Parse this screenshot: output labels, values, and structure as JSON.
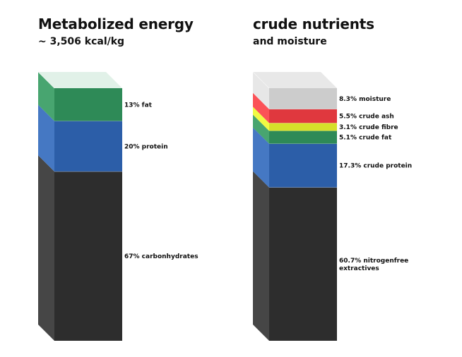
{
  "chart_data": [
    {
      "type": "stacked-bar-3d",
      "title": "Metabolized energy",
      "subtitle": "~ 3,506 kcal/kg",
      "segments": [
        {
          "label": "67% carbonhydrates",
          "value": 67,
          "color": "#2d2d2d"
        },
        {
          "label": "20% protein",
          "value": 20,
          "color": "#2c5ea8"
        },
        {
          "label": "13% fat",
          "value": 13,
          "color": "#2e8a57"
        }
      ],
      "top_color": "#dcefe4"
    },
    {
      "type": "stacked-bar-3d",
      "title": "crude nutrients",
      "subtitle": "and moisture",
      "segments": [
        {
          "label_lines": [
            "60.7% nitrogenfree",
            "extractives"
          ],
          "value": 60.7,
          "color": "#2d2d2d"
        },
        {
          "label": "17.3% crude protein",
          "value": 17.3,
          "color": "#2c5ea8"
        },
        {
          "label": "5.1% crude fat",
          "value": 5.1,
          "color": "#2e8a57"
        },
        {
          "label": "3.1% crude fibre",
          "value": 3.1,
          "color": "#d6df2a"
        },
        {
          "label": "5.5% crude ash",
          "value": 5.5,
          "color": "#e0383e"
        },
        {
          "label": "8.3% moisture",
          "value": 8.3,
          "color": "#cccccc"
        }
      ],
      "top_color": "#e4e4e4"
    }
  ]
}
